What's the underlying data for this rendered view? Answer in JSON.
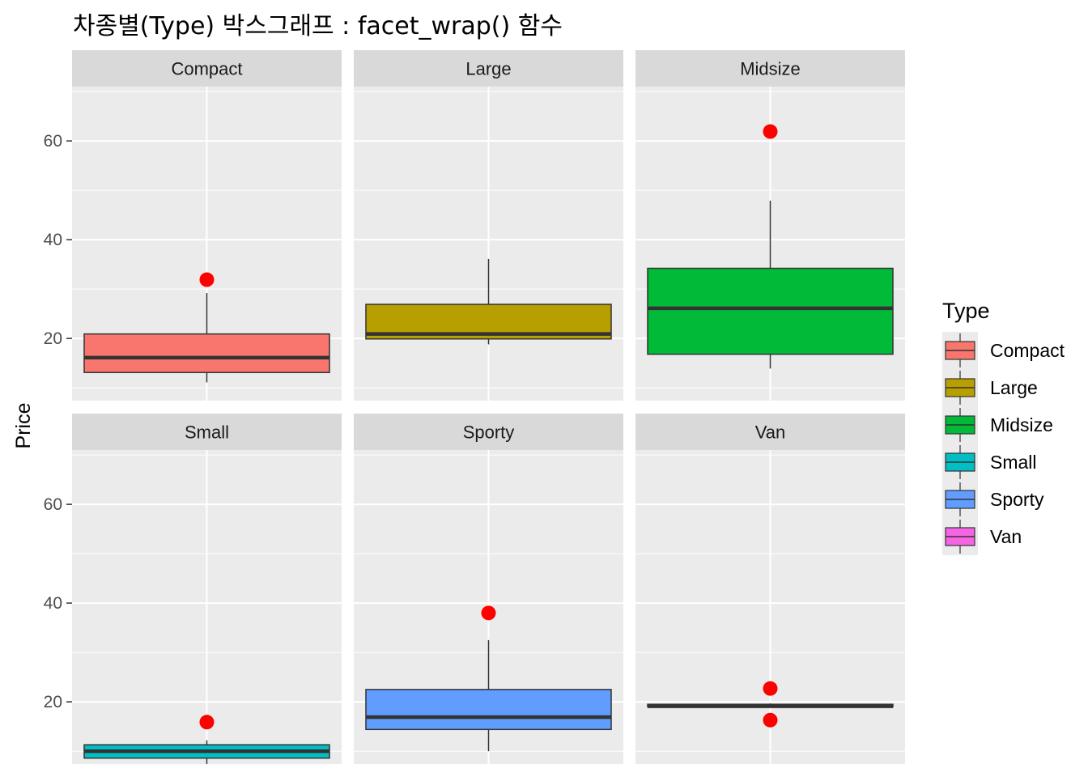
{
  "chart_data": {
    "type": "boxplot",
    "title": "차종별(Type) 박스그래프 : facet_wrap() 함수",
    "xlabel": "",
    "ylabel": "Price",
    "ylim": [
      7.4,
      71.0
    ],
    "yticks": [
      20,
      40,
      60
    ],
    "grid": true,
    "facet": "wrap",
    "legend": {
      "title": "Type",
      "position": "right"
    },
    "panels": [
      {
        "name": "Compact",
        "color": "#F8766D",
        "min": 11.1,
        "q1": 13.1,
        "median": 16.1,
        "q3": 20.9,
        "max": 29.2,
        "outliers": [
          31.9
        ]
      },
      {
        "name": "Large",
        "color": "#B79F00",
        "min": 18.8,
        "q1": 19.9,
        "median": 20.9,
        "q3": 26.9,
        "max": 36.1,
        "outliers": []
      },
      {
        "name": "Midsize",
        "color": "#00BA38",
        "min": 13.9,
        "q1": 16.8,
        "median": 26.1,
        "q3": 34.2,
        "max": 47.9,
        "outliers": [
          61.9
        ]
      },
      {
        "name": "Small",
        "color": "#00BFC4",
        "min": 7.4,
        "q1": 8.6,
        "median": 10.0,
        "q3": 11.3,
        "max": 12.2,
        "outliers": [
          15.9
        ]
      },
      {
        "name": "Sporty",
        "color": "#619CFF",
        "min": 10.0,
        "q1": 14.4,
        "median": 16.9,
        "q3": 22.5,
        "max": 32.5,
        "outliers": [
          38.0
        ]
      },
      {
        "name": "Van",
        "color": "#F564E3",
        "min": 19.0,
        "q1": 19.0,
        "median": 19.1,
        "q3": 19.5,
        "max": 19.7,
        "outliers": [
          22.7,
          16.3
        ]
      }
    ]
  }
}
